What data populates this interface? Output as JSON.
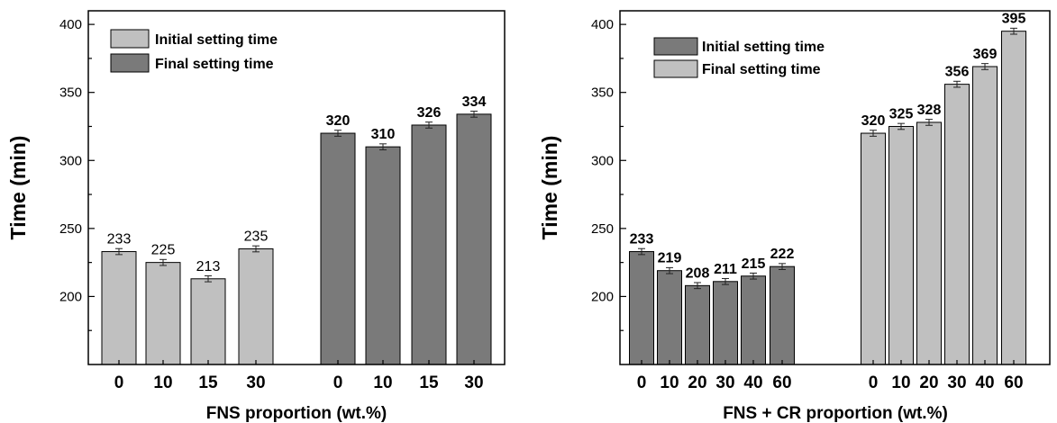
{
  "chart_data": [
    {
      "type": "bar",
      "xlabel": "FNS proportion (wt.%)",
      "ylabel": "Time (min)",
      "ylim": [
        150,
        410
      ],
      "yticks": [
        200,
        250,
        300,
        350,
        400
      ],
      "legend_position": "top-left",
      "grid": false,
      "series": [
        {
          "name": "Initial setting time",
          "color": "#c0c0c0",
          "categories": [
            "0",
            "10",
            "15",
            "30"
          ],
          "values": [
            233,
            225,
            213,
            235
          ],
          "value_labels": [
            "233",
            "225",
            "213",
            "235"
          ],
          "label_style": "normal"
        },
        {
          "name": "Final setting time",
          "color": "#7a7a7a",
          "categories": [
            "0",
            "10",
            "15",
            "30"
          ],
          "values": [
            320,
            310,
            326,
            334
          ],
          "value_labels": [
            "320",
            "310",
            "326",
            "334"
          ],
          "label_style": "bold"
        }
      ]
    },
    {
      "type": "bar",
      "xlabel": "FNS + CR proportion (wt.%)",
      "ylabel": "Time (min)",
      "ylim": [
        150,
        410
      ],
      "yticks": [
        200,
        250,
        300,
        350,
        400
      ],
      "legend_position": "top-left",
      "grid": false,
      "series": [
        {
          "name": "Initial setting time",
          "color": "#7a7a7a",
          "categories": [
            "0",
            "10",
            "20",
            "30",
            "40",
            "60"
          ],
          "values": [
            233,
            219,
            208,
            211,
            215,
            222
          ],
          "value_labels": [
            "233",
            "219",
            "208",
            "211",
            "215",
            "222"
          ],
          "label_style": "bold"
        },
        {
          "name": "Final setting time",
          "color": "#c0c0c0",
          "categories": [
            "0",
            "10",
            "20",
            "30",
            "40",
            "60"
          ],
          "values": [
            320,
            325,
            328,
            356,
            369,
            395
          ],
          "value_labels": [
            "320",
            "325",
            "328",
            "356",
            "369",
            "395"
          ],
          "label_style": "bold"
        }
      ]
    }
  ]
}
